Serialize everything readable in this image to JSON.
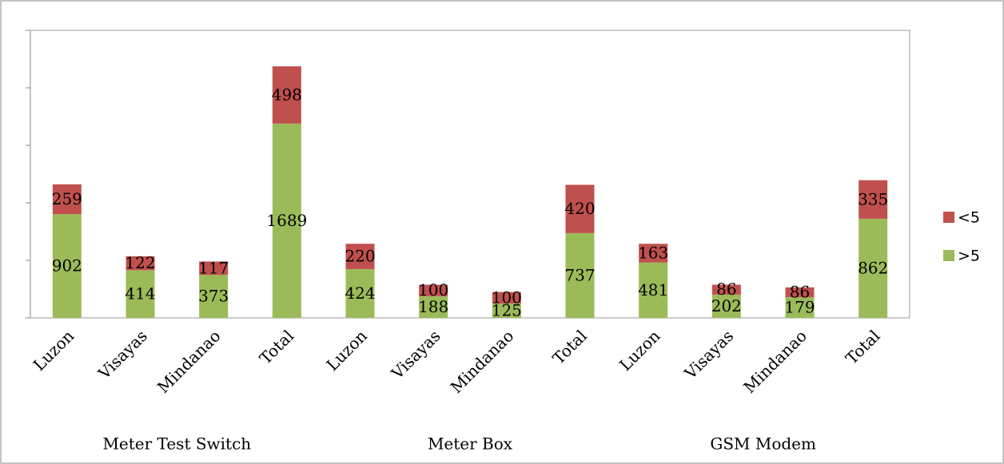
{
  "chart_data": {
    "type": "stacked_bar",
    "categories": [
      "Luzon",
      "Visayas",
      "Mindanao",
      "Total",
      "Luzon",
      "Visayas",
      "Mindanao",
      "Total",
      "Luzon",
      "Visayas",
      "Mindanao",
      "Total"
    ],
    "groups": [
      "Meter Test Switch",
      "Meter Box",
      "GSM Modem"
    ],
    "series": [
      {
        "name": ">5",
        "color": "#9bbb59",
        "values": [
          902,
          414,
          373,
          1689,
          424,
          188,
          125,
          737,
          481,
          202,
          179,
          862
        ]
      },
      {
        "name": "<5",
        "color": "#c0504d",
        "values": [
          259,
          122,
          117,
          498,
          220,
          100,
          100,
          420,
          163,
          86,
          86,
          335
        ]
      }
    ],
    "ylim": [
      0,
      2500
    ],
    "yticks": [
      0,
      500,
      1000,
      1500,
      2000,
      2500
    ],
    "legend": "right"
  }
}
